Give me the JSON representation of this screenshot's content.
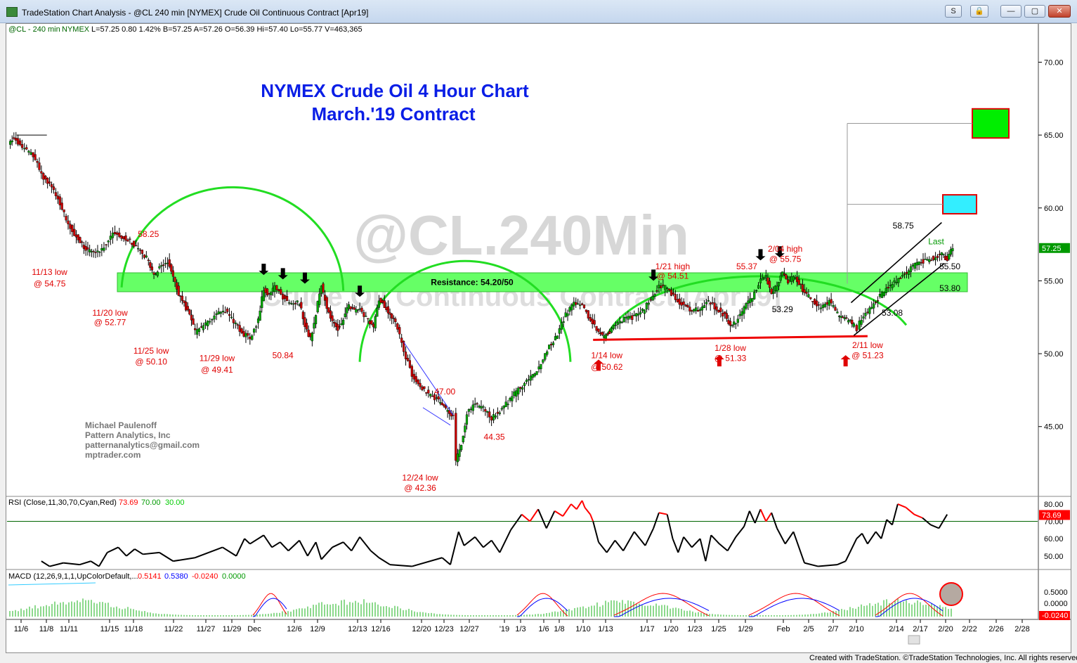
{
  "window": {
    "title": "TradeStation Chart Analysis - @CL 240 min [NYMEX] Crude Oil Continuous Contract [Apr19]",
    "buttons": {
      "s": "S",
      "lock": "🔒",
      "minimize": "—",
      "maximize": "▢",
      "close": "✕"
    }
  },
  "status": "Created with TradeStation. ©TradeStation Technologies, Inc. All rights reserved.",
  "header_line": {
    "symbol": "@CL - 240 min",
    "exchange": "NYMEX",
    "quote": "L=57.25  0.80  1.42%  B=57.25  A=57.26  O=56.39  Hi=57.40  Lo=55.77  V=463,365"
  },
  "watermark": {
    "line1": "@CL.240Min",
    "line2": "Crude Oil Continuous Contract [Apr19]"
  },
  "chart_title": {
    "line1": "NYMEX Crude Oil 4 Hour Chart",
    "line2": "March.'19 Contract"
  },
  "author": [
    "Michael Paulenoff",
    "Pattern Analytics, Inc",
    "patternanalytics@gmail.com",
    "mptrader.com"
  ],
  "colors": {
    "up_candle": "#00aa00",
    "down_candle": "#cc0000",
    "resistance_band": "#66ff66",
    "annotation_red": "#e00000",
    "title_blue": "#0a1ee6",
    "arc_green": "#22dd22",
    "target_green": "#00ee00",
    "target_cyan": "#33eeff",
    "rsi_overbought": "#ff0000"
  },
  "chart_data": {
    "type": "candlestick",
    "price_axis": {
      "ticks": [
        "70.00",
        "65.00",
        "60.00",
        "55.00",
        "50.00",
        "45.00"
      ],
      "last_label": "57.25",
      "ylim": [
        40.5,
        72
      ]
    },
    "x_ticks": [
      "11/6",
      "11/8",
      "11/11",
      "11/15",
      "11/18",
      "11/22",
      "11/27",
      "11/29",
      "Dec",
      "12/6",
      "12/9",
      "12/13",
      "12/16",
      "12/20",
      "12/23",
      "12/27",
      "'19",
      "1/3",
      "1/6",
      "1/8",
      "1/10",
      "1/13",
      "1/17",
      "1/20",
      "1/23",
      "1/25",
      "1/29",
      "Feb",
      "2/5",
      "2/7",
      "2/10",
      "2/14",
      "2/17",
      "2/20",
      "2/22",
      "2/26",
      "2/28"
    ],
    "price_path": [
      [
        0,
        64.3
      ],
      [
        4,
        64.9
      ],
      [
        10,
        64.1
      ],
      [
        18,
        63.6
      ],
      [
        24,
        62.3
      ],
      [
        30,
        61.6
      ],
      [
        36,
        60.7
      ],
      [
        42,
        59.2
      ],
      [
        48,
        58.2
      ],
      [
        55,
        57.3
      ],
      [
        62,
        56.9
      ],
      [
        68,
        57.2
      ],
      [
        76,
        58.3
      ],
      [
        84,
        58.0
      ],
      [
        90,
        57.6
      ],
      [
        96,
        57.0
      ],
      [
        102,
        56.4
      ],
      [
        106,
        55.3
      ],
      [
        110,
        55.9
      ],
      [
        116,
        56.3
      ],
      [
        120,
        55.4
      ],
      [
        124,
        54.1
      ],
      [
        128,
        53.4
      ],
      [
        132,
        52.6
      ],
      [
        136,
        51.5
      ],
      [
        142,
        51.9
      ],
      [
        150,
        52.6
      ],
      [
        158,
        52.9
      ],
      [
        164,
        52.2
      ],
      [
        170,
        51.4
      ],
      [
        176,
        51.1
      ],
      [
        182,
        52.3
      ],
      [
        186,
        54.5
      ],
      [
        190,
        54.0
      ],
      [
        194,
        54.6
      ],
      [
        200,
        53.9
      ],
      [
        206,
        53.4
      ],
      [
        212,
        53.5
      ],
      [
        216,
        52.0
      ],
      [
        220,
        51.0
      ],
      [
        224,
        52.8
      ],
      [
        228,
        54.7
      ],
      [
        232,
        53.2
      ],
      [
        236,
        52.2
      ],
      [
        240,
        51.7
      ],
      [
        244,
        52.4
      ],
      [
        248,
        53.3
      ],
      [
        252,
        53.0
      ],
      [
        256,
        53.1
      ],
      [
        262,
        52.3
      ],
      [
        266,
        51.8
      ],
      [
        270,
        53.8
      ],
      [
        274,
        53.3
      ],
      [
        278,
        52.6
      ],
      [
        282,
        52.2
      ],
      [
        288,
        50.2
      ],
      [
        294,
        48.6
      ],
      [
        300,
        47.8
      ],
      [
        306,
        47.2
      ],
      [
        312,
        46.9
      ],
      [
        316,
        46.5
      ],
      [
        320,
        46.0
      ],
      [
        324,
        45.8
      ],
      [
        326,
        42.6
      ],
      [
        330,
        43.8
      ],
      [
        334,
        45.9
      ],
      [
        340,
        46.5
      ],
      [
        346,
        46.3
      ],
      [
        352,
        45.6
      ],
      [
        358,
        46.1
      ],
      [
        364,
        46.7
      ],
      [
        370,
        47.4
      ],
      [
        376,
        48.0
      ],
      [
        382,
        48.5
      ],
      [
        388,
        49.3
      ],
      [
        394,
        50.5
      ],
      [
        400,
        51.3
      ],
      [
        406,
        52.7
      ],
      [
        412,
        53.6
      ],
      [
        418,
        53.2
      ],
      [
        424,
        52.4
      ],
      [
        430,
        51.5
      ],
      [
        434,
        51.1
      ],
      [
        438,
        51.5
      ],
      [
        444,
        52.1
      ],
      [
        450,
        52.5
      ],
      [
        456,
        52.5
      ],
      [
        462,
        52.9
      ],
      [
        468,
        53.8
      ],
      [
        474,
        54.6
      ],
      [
        480,
        54.5
      ],
      [
        486,
        53.8
      ],
      [
        492,
        53.3
      ],
      [
        498,
        52.9
      ],
      [
        504,
        53.1
      ],
      [
        510,
        53.6
      ],
      [
        516,
        53.1
      ],
      [
        522,
        52.6
      ],
      [
        526,
        51.9
      ],
      [
        530,
        52.2
      ],
      [
        536,
        53.1
      ],
      [
        542,
        53.9
      ],
      [
        548,
        55.0
      ],
      [
        552,
        55.3
      ],
      [
        556,
        54.2
      ],
      [
        560,
        54.6
      ],
      [
        564,
        55.6
      ],
      [
        568,
        54.9
      ],
      [
        572,
        55.3
      ],
      [
        576,
        54.8
      ],
      [
        580,
        54.2
      ],
      [
        586,
        53.6
      ],
      [
        592,
        53.1
      ],
      [
        598,
        53.6
      ],
      [
        604,
        52.7
      ],
      [
        608,
        52.4
      ],
      [
        612,
        52.3
      ],
      [
        616,
        51.9
      ],
      [
        618,
        51.5
      ],
      [
        620,
        52.1
      ],
      [
        626,
        52.9
      ],
      [
        632,
        53.6
      ],
      [
        638,
        54.3
      ],
      [
        644,
        54.8
      ],
      [
        650,
        55.2
      ],
      [
        656,
        55.7
      ],
      [
        662,
        56.2
      ],
      [
        668,
        56.4
      ],
      [
        674,
        56.6
      ],
      [
        680,
        56.9
      ],
      [
        684,
        56.4
      ],
      [
        688,
        57.3
      ]
    ],
    "x_domain": [
      0,
      688
    ],
    "resistance": {
      "label": "Resistance: 54.20/50",
      "low": 54.25,
      "high": 55.55
    },
    "support_line": {
      "from": [
        426,
        50.95
      ],
      "to": [
        626,
        51.2
      ]
    },
    "channel": {
      "upper": {
        "from": [
          614,
          53.5
        ],
        "to": [
          680,
          59.0
        ]
      },
      "lower": {
        "from": [
          616,
          51.25
        ],
        "to": [
          682,
          56.2
        ]
      }
    },
    "targets": [
      {
        "price_low": 64.8,
        "price_high": 66.8,
        "color": "green"
      },
      {
        "price_low": 59.6,
        "price_high": 60.9,
        "color": "cyan"
      }
    ],
    "price_labels": [
      {
        "text": "58.25",
        "x": 102,
        "p": 58.0,
        "color": "red"
      },
      {
        "text": "11/13 low",
        "x": 30,
        "p": 55.4,
        "color": "red"
      },
      {
        "text": "@ 54.75",
        "x": 30,
        "p": 54.6,
        "color": "red"
      },
      {
        "text": "11/20 low",
        "x": 74,
        "p": 52.6,
        "color": "red"
      },
      {
        "text": "@ 52.77",
        "x": 74,
        "p": 51.95,
        "color": "red"
      },
      {
        "text": "11/25 low",
        "x": 104,
        "p": 50.0,
        "color": "red"
      },
      {
        "text": "@ 50.10",
        "x": 104,
        "p": 49.25,
        "color": "red"
      },
      {
        "text": "11/29 low",
        "x": 152,
        "p": 49.5,
        "color": "red"
      },
      {
        "text": "@ 49.41",
        "x": 152,
        "p": 48.7,
        "color": "red"
      },
      {
        "text": "50.84",
        "x": 200,
        "p": 49.7,
        "color": "red"
      },
      {
        "text": "47.00",
        "x": 318,
        "p": 47.2,
        "color": "red"
      },
      {
        "text": "44.35",
        "x": 354,
        "p": 44.1,
        "color": "red"
      },
      {
        "text": "12/24 low",
        "x": 300,
        "p": 41.3,
        "color": "red"
      },
      {
        "text": "@ 42.36",
        "x": 300,
        "p": 40.6,
        "color": "red"
      },
      {
        "text": "1/14 low",
        "x": 436,
        "p": 49.7,
        "color": "red"
      },
      {
        "text": "@ 50.62",
        "x": 436,
        "p": 48.9,
        "color": "red"
      },
      {
        "text": "1/21 high",
        "x": 484,
        "p": 55.8,
        "color": "red"
      },
      {
        "text": "@ 54.51",
        "x": 484,
        "p": 55.15,
        "color": "red"
      },
      {
        "text": "55.37",
        "x": 538,
        "p": 55.8,
        "color": "red"
      },
      {
        "text": "2/04 high",
        "x": 566,
        "p": 57.0,
        "color": "red"
      },
      {
        "text": "@ 55.75",
        "x": 566,
        "p": 56.3,
        "color": "red"
      },
      {
        "text": "53.29",
        "x": 564,
        "p": 52.85,
        "color": "black"
      },
      {
        "text": "1/28 low",
        "x": 526,
        "p": 50.2,
        "color": "red"
      },
      {
        "text": "@ 51.33",
        "x": 526,
        "p": 49.5,
        "color": "red"
      },
      {
        "text": "2/11 low",
        "x": 626,
        "p": 50.4,
        "color": "red"
      },
      {
        "text": "@ 51.23",
        "x": 626,
        "p": 49.7,
        "color": "red"
      },
      {
        "text": "53.08",
        "x": 644,
        "p": 52.6,
        "color": "black"
      },
      {
        "text": "58.75",
        "x": 652,
        "p": 58.6,
        "color": "black"
      },
      {
        "text": "Last",
        "x": 676,
        "p": 57.5,
        "color": "green"
      },
      {
        "text": "55.50",
        "x": 686,
        "p": 55.8,
        "color": "black"
      },
      {
        "text": "53.80",
        "x": 686,
        "p": 54.3,
        "color": "black"
      }
    ],
    "arrows_down": [
      [
        186,
        55.4
      ],
      [
        200,
        55.1
      ],
      [
        216,
        54.8
      ],
      [
        256,
        53.9
      ],
      [
        470,
        55.0
      ],
      [
        548,
        56.4
      ],
      [
        562,
        56.6
      ]
    ],
    "arrows_up": [
      [
        430,
        49.6
      ],
      [
        518,
        49.9
      ],
      [
        610,
        49.9
      ]
    ],
    "rsi": {
      "label": "RSI (Close,11,30,70,Cyan,Red)",
      "values": [
        "73.69",
        "70.00",
        "30.00"
      ],
      "ticks": [
        "80.00",
        "70.00",
        "60.00",
        "50.00"
      ],
      "last_label": "73.69",
      "ylim": [
        43,
        82
      ],
      "series": [
        [
          24,
          47
        ],
        [
          30,
          44
        ],
        [
          40,
          46
        ],
        [
          52,
          45
        ],
        [
          60,
          47
        ],
        [
          66,
          44
        ],
        [
          72,
          52
        ],
        [
          80,
          55
        ],
        [
          86,
          50
        ],
        [
          92,
          54
        ],
        [
          98,
          51
        ],
        [
          110,
          52
        ],
        [
          120,
          47
        ],
        [
          136,
          49
        ],
        [
          146,
          52
        ],
        [
          156,
          55
        ],
        [
          166,
          50
        ],
        [
          172,
          60
        ],
        [
          176,
          57
        ],
        [
          186,
          62
        ],
        [
          192,
          55
        ],
        [
          198,
          58
        ],
        [
          204,
          53
        ],
        [
          212,
          59
        ],
        [
          218,
          50
        ],
        [
          224,
          58
        ],
        [
          228,
          48
        ],
        [
          236,
          55
        ],
        [
          244,
          58
        ],
        [
          250,
          53
        ],
        [
          256,
          61
        ],
        [
          264,
          53
        ],
        [
          270,
          49
        ],
        [
          278,
          45
        ],
        [
          294,
          44
        ],
        [
          316,
          49
        ],
        [
          322,
          45
        ],
        [
          328,
          64
        ],
        [
          332,
          56
        ],
        [
          340,
          61
        ],
        [
          346,
          55
        ],
        [
          352,
          59
        ],
        [
          358,
          52
        ],
        [
          366,
          65
        ],
        [
          374,
          74
        ],
        [
          380,
          70
        ],
        [
          386,
          77
        ],
        [
          392,
          66
        ],
        [
          398,
          76
        ],
        [
          404,
          73
        ],
        [
          410,
          80
        ],
        [
          414,
          77
        ],
        [
          418,
          82
        ],
        [
          420,
          78
        ],
        [
          424,
          74
        ],
        [
          426,
          70
        ],
        [
          430,
          58
        ],
        [
          436,
          52
        ],
        [
          442,
          59
        ],
        [
          448,
          53
        ],
        [
          456,
          64
        ],
        [
          464,
          56
        ],
        [
          470,
          66
        ],
        [
          474,
          75
        ],
        [
          480,
          74
        ],
        [
          484,
          60
        ],
        [
          488,
          52
        ],
        [
          492,
          61
        ],
        [
          498,
          55
        ],
        [
          504,
          60
        ],
        [
          508,
          47
        ],
        [
          512,
          62
        ],
        [
          518,
          57
        ],
        [
          524,
          53
        ],
        [
          530,
          61
        ],
        [
          536,
          67
        ],
        [
          540,
          76
        ],
        [
          544,
          69
        ],
        [
          548,
          77
        ],
        [
          552,
          70
        ],
        [
          556,
          75
        ],
        [
          560,
          66
        ],
        [
          566,
          57
        ],
        [
          572,
          64
        ],
        [
          580,
          46
        ],
        [
          590,
          44
        ],
        [
          604,
          45
        ],
        [
          610,
          47
        ],
        [
          618,
          60
        ],
        [
          622,
          63
        ],
        [
          626,
          57
        ],
        [
          632,
          64
        ],
        [
          636,
          60
        ],
        [
          640,
          71
        ],
        [
          644,
          68
        ],
        [
          648,
          80
        ],
        [
          654,
          78
        ],
        [
          660,
          74
        ],
        [
          666,
          72
        ],
        [
          672,
          68
        ],
        [
          678,
          66
        ],
        [
          684,
          74
        ]
      ]
    },
    "macd": {
      "label": "MACD (12,26,9,1,1,UpColorDefault,...",
      "values": [
        "0.5141",
        "0.5380",
        "-0.0240",
        "0.0000"
      ],
      "ticks": [
        "0.5000",
        "0.0000"
      ],
      "last_label": "-0.0240"
    }
  }
}
